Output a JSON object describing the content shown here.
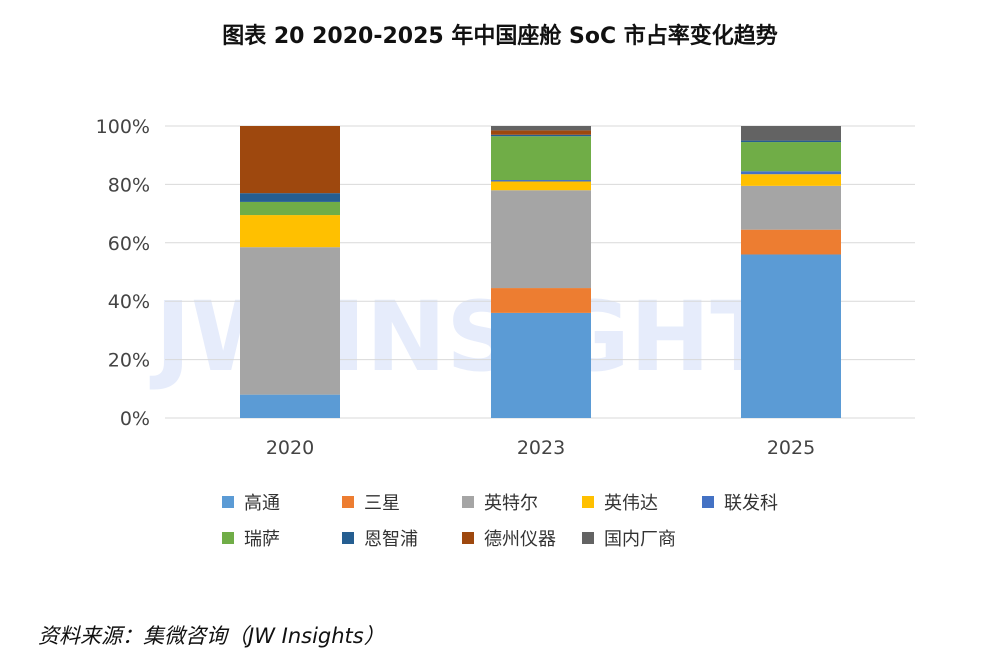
{
  "title": "图表 20 2020-2025 年中国座舱 SoC 市占率变化趋势",
  "source": "资料来源：集微咨询（JW Insights）",
  "watermark": "JW INSIGHTS",
  "chart_data": {
    "type": "bar",
    "stacked": true,
    "categories": [
      "2020",
      "2023",
      "2025"
    ],
    "ylim": [
      0,
      100
    ],
    "yticks": [
      "0%",
      "20%",
      "40%",
      "60%",
      "80%",
      "100%"
    ],
    "grid": true,
    "legend_position": "bottom",
    "series": [
      {
        "name": "高通",
        "color": "#5B9BD5",
        "values": [
          8,
          36,
          56
        ]
      },
      {
        "name": "三星",
        "color": "#ED7D31",
        "values": [
          0,
          8.5,
          8.5
        ]
      },
      {
        "name": "英特尔",
        "color": "#A5A5A5",
        "values": [
          50.5,
          33.5,
          15
        ]
      },
      {
        "name": "英伟达",
        "color": "#FFC000",
        "values": [
          11,
          3,
          4
        ]
      },
      {
        "name": "联发科",
        "color": "#4472C4",
        "values": [
          0,
          0.5,
          1
        ]
      },
      {
        "name": "瑞萨",
        "color": "#70AD47",
        "values": [
          4.5,
          15,
          10
        ]
      },
      {
        "name": "恩智浦",
        "color": "#255E91",
        "values": [
          3,
          0.5,
          0.5
        ]
      },
      {
        "name": "德州仪器",
        "color": "#9E480E",
        "values": [
          23,
          1.5,
          0
        ]
      },
      {
        "name": "国内厂商",
        "color": "#636363",
        "values": [
          0,
          1.5,
          5
        ]
      }
    ]
  }
}
